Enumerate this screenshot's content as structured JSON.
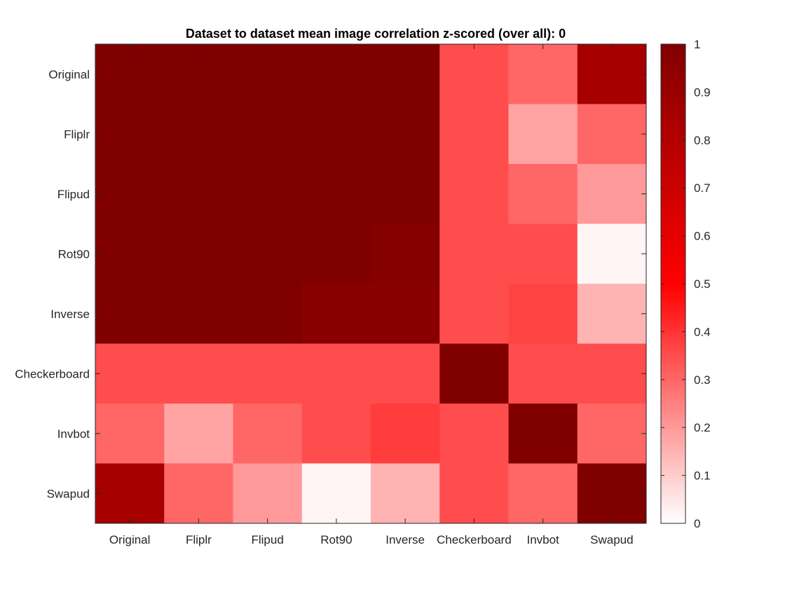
{
  "chart_data": {
    "type": "heatmap",
    "title": "Dataset to dataset mean image correlation z-scored (over all): 0",
    "xlabel": "",
    "ylabel": "",
    "x_categories": [
      "Original",
      "Fliplr",
      "Flipud",
      "Rot90",
      "Inverse",
      "Checkerboard",
      "Invbot",
      "Swapud"
    ],
    "y_categories": [
      "Original",
      "Fliplr",
      "Flipud",
      "Rot90",
      "Inverse",
      "Checkerboard",
      "Invbot",
      "Swapud"
    ],
    "values": [
      [
        1.0,
        1.0,
        1.0,
        1.0,
        1.0,
        0.35,
        0.3,
        0.85
      ],
      [
        1.0,
        1.0,
        1.0,
        1.0,
        1.0,
        0.35,
        0.18,
        0.3
      ],
      [
        1.0,
        1.0,
        1.0,
        1.0,
        1.0,
        0.35,
        0.3,
        0.2
      ],
      [
        1.0,
        1.0,
        1.0,
        1.0,
        0.98,
        0.35,
        0.35,
        0.02
      ],
      [
        1.0,
        1.0,
        1.0,
        0.97,
        0.97,
        0.35,
        0.37,
        0.15
      ],
      [
        0.35,
        0.35,
        0.35,
        0.35,
        0.35,
        1.0,
        0.35,
        0.35
      ],
      [
        0.3,
        0.18,
        0.3,
        0.35,
        0.38,
        0.35,
        1.0,
        0.3
      ],
      [
        0.85,
        0.3,
        0.2,
        0.02,
        0.15,
        0.35,
        0.3,
        1.0
      ]
    ],
    "colorbar": {
      "min": 0,
      "max": 1,
      "ticks": [
        "0",
        "0.1",
        "0.2",
        "0.3",
        "0.4",
        "0.5",
        "0.6",
        "0.7",
        "0.8",
        "0.9",
        "1"
      ],
      "colormap": "white-red-darkred"
    },
    "grid": false
  }
}
